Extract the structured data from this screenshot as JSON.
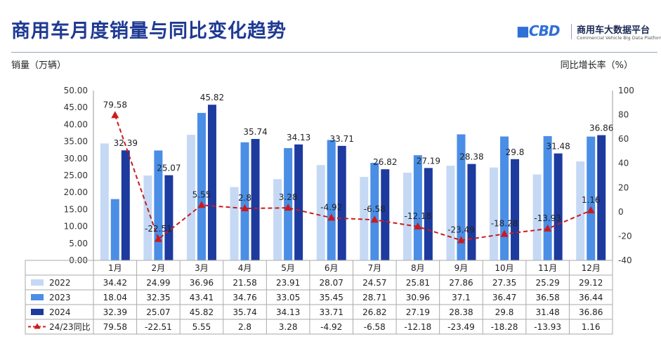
{
  "header": {
    "title": "商用车月度销量与同比变化趋势",
    "logo_name": "商用车大数据平台",
    "logo_sub": "Commercial Vehicle Big Data Platform"
  },
  "chart_data": {
    "type": "bar",
    "title": "商用车月度销量与同比变化趋势",
    "ylabel": "销量（万辆）",
    "y2label": "同比增长率（%）",
    "ylim": [
      0,
      50
    ],
    "y2lim": [
      -40,
      100
    ],
    "yticks": [
      "0.00",
      "5.00",
      "10.00",
      "15.00",
      "20.00",
      "25.00",
      "30.00",
      "35.00",
      "40.00",
      "45.00",
      "50.00"
    ],
    "y2ticks": [
      "-40",
      "-20",
      "0",
      "20",
      "40",
      "60",
      "80",
      "100"
    ],
    "categories": [
      "1月",
      "2月",
      "3月",
      "4月",
      "5月",
      "6月",
      "7月",
      "8月",
      "9月",
      "10月",
      "11月",
      "12月"
    ],
    "series": [
      {
        "name": "2022",
        "type": "bar",
        "color": "#c5d9f5",
        "values": [
          34.42,
          24.99,
          36.96,
          21.58,
          23.91,
          28.07,
          24.57,
          25.81,
          27.86,
          27.35,
          25.29,
          29.12
        ]
      },
      {
        "name": "2023",
        "type": "bar",
        "color": "#4a8ee6",
        "values": [
          18.04,
          32.35,
          43.41,
          34.76,
          33.05,
          35.45,
          28.71,
          30.96,
          37.1,
          36.47,
          36.58,
          36.44
        ]
      },
      {
        "name": "2024",
        "type": "bar",
        "color": "#1d3a9e",
        "values": [
          32.39,
          25.07,
          45.82,
          35.74,
          34.13,
          33.71,
          26.82,
          27.19,
          28.38,
          29.8,
          31.48,
          36.86
        ]
      },
      {
        "name": "24/23同比",
        "type": "line",
        "axis": "right",
        "color": "#cc1a1a",
        "values": [
          79.58,
          -22.51,
          5.55,
          2.8,
          3.28,
          -4.92,
          -6.58,
          -12.18,
          -23.49,
          -18.28,
          -13.93,
          1.16
        ]
      }
    ],
    "table": {
      "rows": [
        {
          "label": "2022",
          "cells": [
            "34.42",
            "24.99",
            "36.96",
            "21.58",
            "23.91",
            "28.07",
            "24.57",
            "25.81",
            "27.86",
            "27.35",
            "25.29",
            "29.12"
          ]
        },
        {
          "label": "2023",
          "cells": [
            "18.04",
            "32.35",
            "43.41",
            "34.76",
            "33.05",
            "35.45",
            "28.71",
            "30.96",
            "37.1",
            "36.47",
            "36.58",
            "36.44"
          ]
        },
        {
          "label": "2024",
          "cells": [
            "32.39",
            "25.07",
            "45.82",
            "35.74",
            "34.13",
            "33.71",
            "26.82",
            "27.19",
            "28.38",
            "29.8",
            "31.48",
            "36.86"
          ]
        },
        {
          "label": "24/23同比",
          "cells": [
            "79.58",
            "-22.51",
            "5.55",
            "2.8",
            "3.28",
            "-4.92",
            "-6.58",
            "-12.18",
            "-23.49",
            "-18.28",
            "-13.93",
            "1.16"
          ]
        }
      ]
    },
    "grid": false,
    "legend": "table-left"
  }
}
